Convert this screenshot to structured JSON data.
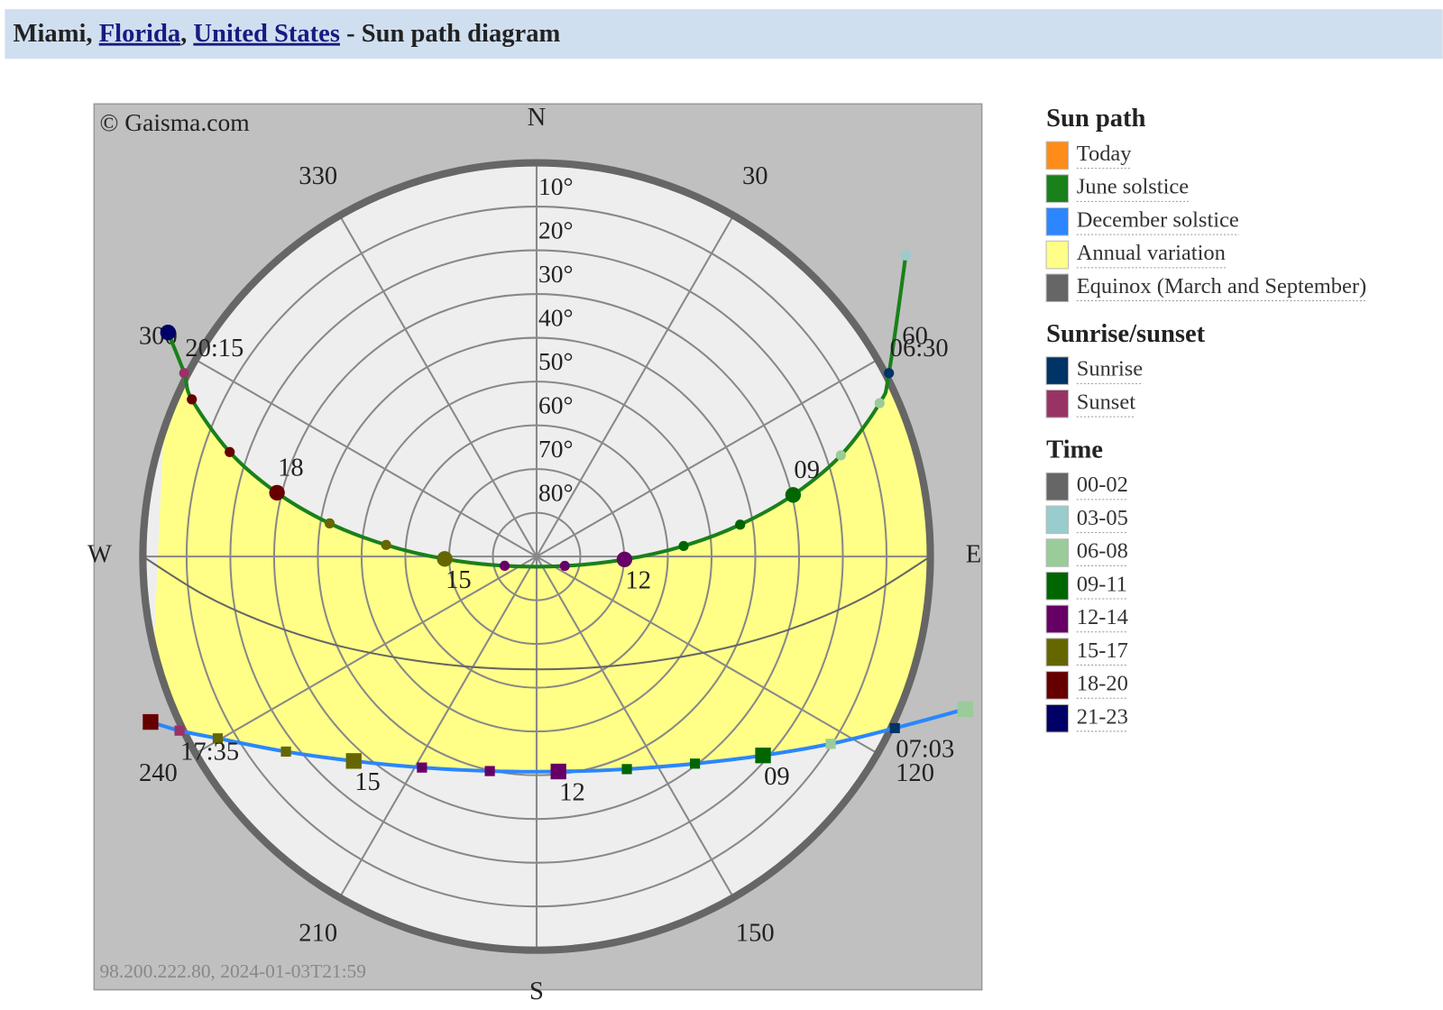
{
  "header": {
    "parts": [
      {
        "text": "Miami"
      },
      {
        "text": ", "
      },
      {
        "text": "Florida",
        "link": true
      },
      {
        "text": ", "
      },
      {
        "text": "United States",
        "link": true
      },
      {
        "text": " - Sun path diagram"
      }
    ]
  },
  "diagram": {
    "copyright": "© Gaisma.com",
    "footer": "98.200.222.80, 2024-01-03T21:59",
    "compass": [
      {
        "value": 0,
        "label": "N"
      },
      {
        "value": 90,
        "label": "E"
      },
      {
        "value": 180,
        "label": "S"
      },
      {
        "value": 270,
        "label": "W"
      }
    ],
    "azimuth_ticks": [
      30,
      60,
      120,
      150,
      210,
      240,
      300,
      330
    ],
    "altitude_ticks": [
      {
        "value": 10,
        "label": "10°"
      },
      {
        "value": 20,
        "label": "20°"
      },
      {
        "value": 30,
        "label": "30°"
      },
      {
        "value": 40,
        "label": "40°"
      },
      {
        "value": 50,
        "label": "50°"
      },
      {
        "value": 60,
        "label": "60°"
      },
      {
        "value": 70,
        "label": "70°"
      },
      {
        "value": 80,
        "label": "80°"
      }
    ],
    "annual_color": "#ffff88",
    "equinox": {
      "color": "#666666",
      "points": [
        {
          "az": 90,
          "alt": 0
        },
        {
          "az": 96.6,
          "alt": 13.5
        },
        {
          "az": 104.1,
          "alt": 26.8
        },
        {
          "az": 113.5,
          "alt": 39.5
        },
        {
          "az": 127.0,
          "alt": 51.3
        },
        {
          "az": 148.3,
          "alt": 60.4
        },
        {
          "az": 180,
          "alt": 64.2
        },
        {
          "az": 211.7,
          "alt": 60.4
        },
        {
          "az": 233.0,
          "alt": 51.3
        },
        {
          "az": 246.5,
          "alt": 39.5
        },
        {
          "az": 255.9,
          "alt": 26.8
        },
        {
          "az": 263.4,
          "alt": 13.5
        },
        {
          "az": 270,
          "alt": 0
        }
      ]
    },
    "paths": [
      {
        "color": "#1a801a",
        "marker": "circle",
        "points": [
          {
            "hour": 5,
            "az": 50.8,
            "alt": -18.9
          },
          {
            "event": "sunrise",
            "az": 62.5,
            "alt": -0.8,
            "label": "06:30"
          },
          {
            "hour": 7,
            "az": 65.9,
            "alt": 4.1
          },
          {
            "hour": 8,
            "az": 71.6,
            "alt": 16.7
          },
          {
            "hour": 9,
            "az": 76.5,
            "alt": 29.7,
            "label": "09"
          },
          {
            "hour": 10,
            "az": 81.1,
            "alt": 42.9
          },
          {
            "hour": 11,
            "az": 85.9,
            "alt": 56.3
          },
          {
            "hour": 12,
            "az": 91.9,
            "alt": 69.9,
            "label": "12"
          },
          {
            "hour": 13,
            "az": 108.4,
            "alt": 83.2
          },
          {
            "hour": 14,
            "az": 253.8,
            "alt": 82.4
          },
          {
            "hour": 15,
            "az": 268.5,
            "alt": 69.0,
            "label": "15"
          },
          {
            "hour": 16,
            "az": 274.4,
            "alt": 55.5
          },
          {
            "hour": 17,
            "az": 279.1,
            "alt": 42.1
          },
          {
            "hour": 18,
            "az": 283.8,
            "alt": 28.9,
            "label": "18"
          },
          {
            "hour": 19,
            "az": 288.8,
            "alt": 15.9
          },
          {
            "hour": 20,
            "az": 294.5,
            "alt": 3.4
          },
          {
            "event": "sunset",
            "az": 297.5,
            "alt": -0.8,
            "label": "20:15"
          },
          {
            "hour": 21,
            "az": 301.3,
            "alt": -8.6
          }
        ]
      },
      {
        "color": "#2b86ff",
        "marker": "square",
        "points": [
          {
            "hour": 6,
            "az": 109.6,
            "alt": -14.0
          },
          {
            "event": "sunrise",
            "az": 115.6,
            "alt": -0.8,
            "label": "07:03"
          },
          {
            "hour": 8,
            "az": 122.5,
            "alt": 10.3
          },
          {
            "hour": 9,
            "az": 131.3,
            "alt": 21.1,
            "label": "09"
          },
          {
            "hour": 10,
            "az": 142.6,
            "alt": 30.4
          },
          {
            "hour": 11,
            "az": 157.0,
            "alt": 37.2
          },
          {
            "hour": 12,
            "az": 174.2,
            "alt": 40.6,
            "label": "12"
          },
          {
            "hour": 13,
            "az": 192.3,
            "alt": 39.8
          },
          {
            "hour": 14,
            "az": 208.5,
            "alt": 35.1
          },
          {
            "hour": 15,
            "az": 221.8,
            "alt": 27.3,
            "label": "15"
          },
          {
            "hour": 16,
            "az": 232.1,
            "alt": 17.4
          },
          {
            "hour": 17,
            "az": 240.3,
            "alt": 6.1
          },
          {
            "event": "sunset",
            "az": 244.0,
            "alt": -0.8,
            "label": "17:35"
          },
          {
            "hour": 18,
            "az": 246.8,
            "alt": -6.0
          }
        ]
      }
    ]
  },
  "legend": {
    "sections": [
      {
        "title": "Sun path",
        "items": [
          {
            "label": "Today",
            "color": "#ff8c1a"
          },
          {
            "label": "June solstice",
            "color": "#1a801a"
          },
          {
            "label": "December solstice",
            "color": "#2b86ff"
          },
          {
            "label": "Annual variation",
            "color": "#ffff88"
          },
          {
            "label": "Equinox (March and September)",
            "color": "#666666"
          }
        ]
      },
      {
        "title": "Sunrise/sunset",
        "items": [
          {
            "label": "Sunrise",
            "color": "#003366"
          },
          {
            "label": "Sunset",
            "color": "#993366"
          }
        ]
      },
      {
        "title": "Time",
        "items": [
          {
            "label": "00-02",
            "color": "#666666"
          },
          {
            "label": "03-05",
            "color": "#99cccc"
          },
          {
            "label": "06-08",
            "color": "#99cc99"
          },
          {
            "label": "09-11",
            "color": "#006600"
          },
          {
            "label": "12-14",
            "color": "#660066"
          },
          {
            "label": "15-17",
            "color": "#666600"
          },
          {
            "label": "18-20",
            "color": "#660000"
          },
          {
            "label": "21-23",
            "color": "#000066"
          }
        ]
      }
    ]
  }
}
